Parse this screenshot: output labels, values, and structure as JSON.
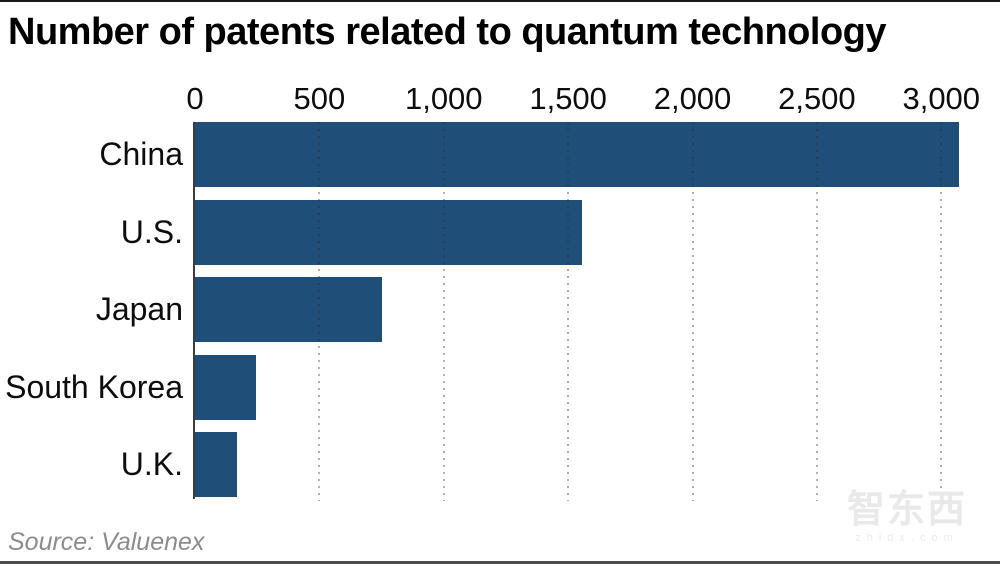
{
  "title": "Number of patents related to quantum technology",
  "source": "Source: Valuenex",
  "watermark": {
    "logo": "智东西",
    "domain": "zhidx.com"
  },
  "colors": {
    "bar": "#1f4e79",
    "axis_line": "#3c3c3c",
    "gridline": "rgba(45,45,45,0.38)",
    "title_text": "#000000",
    "source_text": "#8c8c8c",
    "watermark_text": "#e9e9e9",
    "top_rule": "#1a1a1a",
    "bottom_rule": "#4d4d4d"
  },
  "chart_data": {
    "type": "bar",
    "orientation": "horizontal",
    "title": "Number of patents related to quantum technology",
    "categories": [
      "China",
      "U.S.",
      "Japan",
      "South Korea",
      "U.K."
    ],
    "values": [
      3070,
      1555,
      750,
      245,
      170
    ],
    "xlabel": "",
    "ylabel": "",
    "xlim": [
      0,
      3200
    ],
    "xticks": [
      0,
      500,
      1000,
      1500,
      2000,
      2500,
      3000
    ],
    "xtick_labels": [
      "0",
      "500",
      "1,000",
      "1,500",
      "2,000",
      "2,500",
      "3,000"
    ],
    "grid": "vertical-dotted",
    "legend": "none",
    "bar_color": "#1f4e79"
  }
}
